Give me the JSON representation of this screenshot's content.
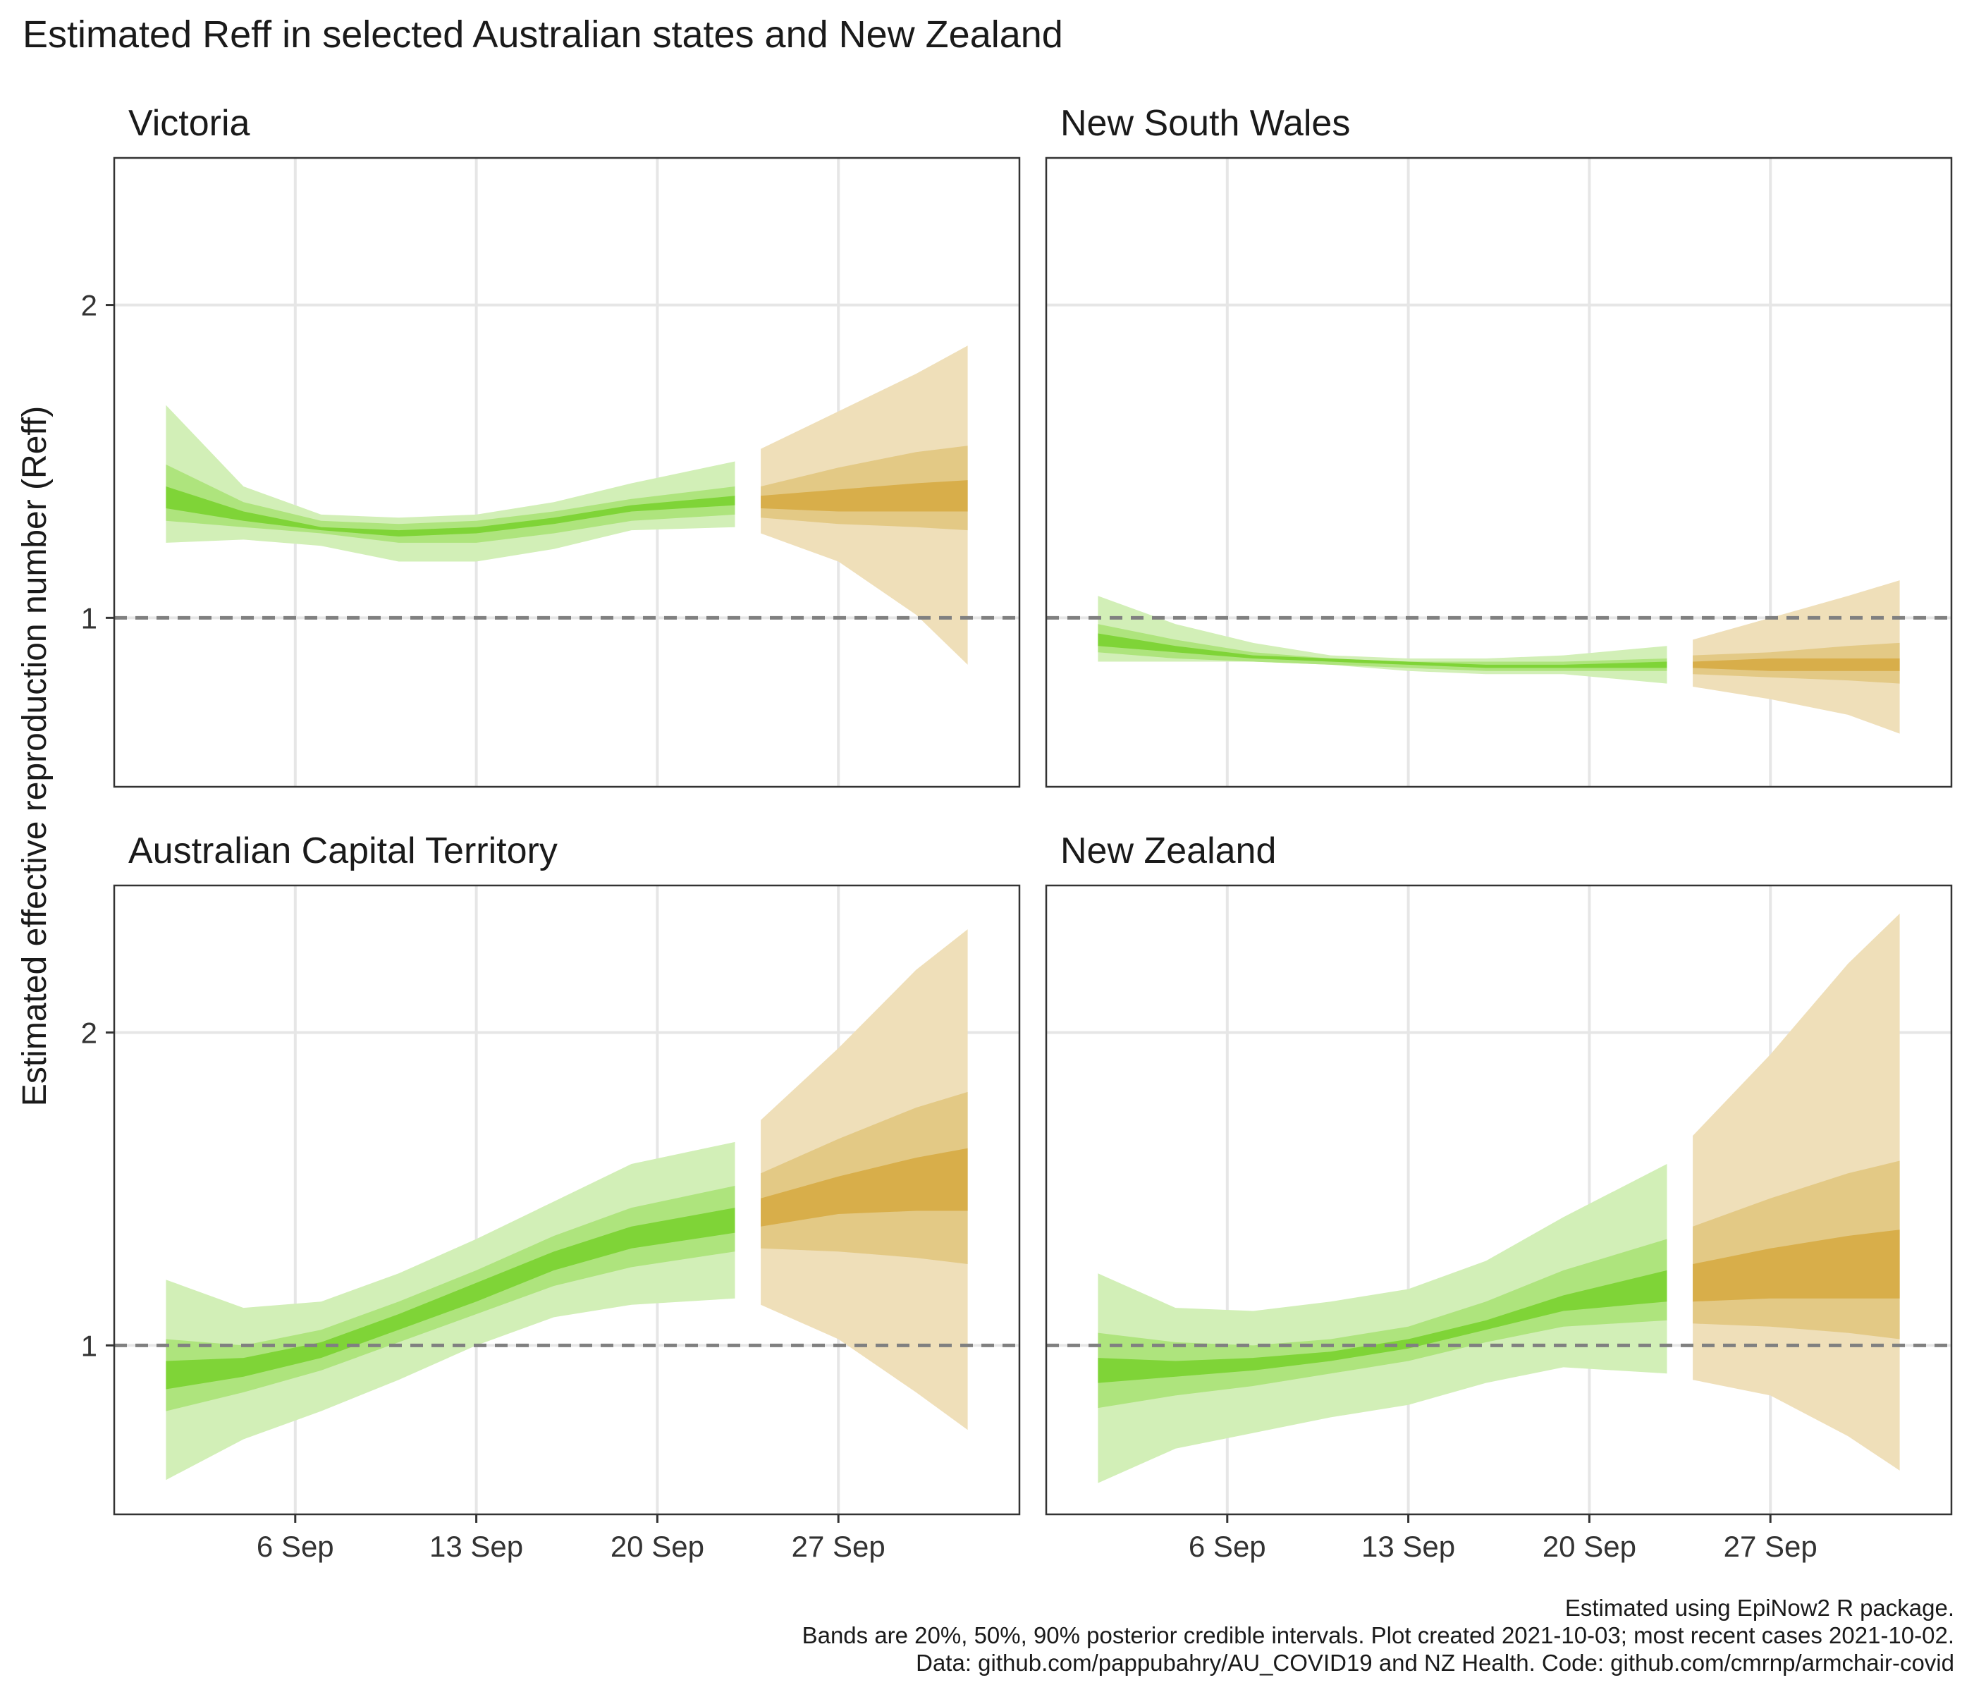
{
  "title": "Estimated Reff in selected Australian states and New Zealand",
  "ylabel": "Estimated effective reproduction number (Reff)",
  "caption": {
    "line1": "Estimated using EpiNow2 R package.",
    "line2": "Bands are 20%, 50%, 90% posterior credible intervals. Plot created 2021-10-03; most recent cases 2021-10-02.",
    "line3": "Data: github.com/pappubahry/AU_COVID19 and NZ Health. Code: github.com/cmrnp/armchair-covid"
  },
  "colors": {
    "estimate_90": "#d2efb7",
    "estimate_50": "#aee47d",
    "estimate_20": "#7fd437",
    "forecast_90": "#efdfb9",
    "forecast_50": "#e3c985",
    "forecast_20": "#d8ae4a",
    "reference_line": "#808080",
    "grid": "#e6e6e6",
    "panel_border": "#333333"
  },
  "chart_data": {
    "type": "area",
    "x_unit": "date (2021)",
    "x_ticks": [
      "6 Sep",
      "13 Sep",
      "20 Sep",
      "27 Sep"
    ],
    "x_tick_dates": [
      "2021-09-06",
      "2021-09-13",
      "2021-09-20",
      "2021-09-27"
    ],
    "xlim": [
      "2021-08-30",
      "2021-10-04"
    ],
    "ylim": [
      0.46,
      2.47
    ],
    "y_ticks": [
      1,
      2
    ],
    "reference_line": 1,
    "grid": true,
    "band_levels": [
      "20%",
      "50%",
      "90%"
    ],
    "phases": [
      "estimate",
      "forecast"
    ],
    "panels": [
      {
        "name": "Victoria",
        "dates": [
          "2021-09-01",
          "2021-09-04",
          "2021-09-07",
          "2021-09-10",
          "2021-09-13",
          "2021-09-16",
          "2021-09-19",
          "2021-09-23",
          "2021-09-24",
          "2021-09-27",
          "2021-09-30",
          "2021-10-02"
        ],
        "phase": [
          "estimate",
          "estimate",
          "estimate",
          "estimate",
          "estimate",
          "estimate",
          "estimate",
          "estimate",
          "forecast",
          "forecast",
          "forecast",
          "forecast"
        ],
        "lower90": [
          1.24,
          1.25,
          1.23,
          1.18,
          1.18,
          1.22,
          1.28,
          1.29,
          1.27,
          1.18,
          1.01,
          0.85
        ],
        "lower50": [
          1.31,
          1.29,
          1.27,
          1.24,
          1.24,
          1.27,
          1.31,
          1.33,
          1.32,
          1.3,
          1.29,
          1.28
        ],
        "lower20": [
          1.35,
          1.31,
          1.28,
          1.26,
          1.27,
          1.3,
          1.34,
          1.36,
          1.35,
          1.34,
          1.34,
          1.34
        ],
        "upper20": [
          1.42,
          1.34,
          1.29,
          1.28,
          1.29,
          1.32,
          1.36,
          1.39,
          1.39,
          1.41,
          1.43,
          1.44
        ],
        "upper50": [
          1.49,
          1.37,
          1.31,
          1.3,
          1.31,
          1.34,
          1.38,
          1.42,
          1.42,
          1.48,
          1.53,
          1.55
        ],
        "upper90": [
          1.68,
          1.42,
          1.33,
          1.32,
          1.33,
          1.37,
          1.43,
          1.5,
          1.54,
          1.66,
          1.78,
          1.87
        ]
      },
      {
        "name": "New South Wales",
        "dates": [
          "2021-09-01",
          "2021-09-04",
          "2021-09-07",
          "2021-09-10",
          "2021-09-13",
          "2021-09-16",
          "2021-09-19",
          "2021-09-23",
          "2021-09-24",
          "2021-09-27",
          "2021-09-30",
          "2021-10-02"
        ],
        "phase": [
          "estimate",
          "estimate",
          "estimate",
          "estimate",
          "estimate",
          "estimate",
          "estimate",
          "estimate",
          "forecast",
          "forecast",
          "forecast",
          "forecast"
        ],
        "lower90": [
          0.86,
          0.86,
          0.86,
          0.85,
          0.83,
          0.82,
          0.82,
          0.79,
          0.78,
          0.74,
          0.69,
          0.63
        ],
        "lower50": [
          0.89,
          0.87,
          0.86,
          0.85,
          0.84,
          0.83,
          0.83,
          0.83,
          0.82,
          0.81,
          0.8,
          0.79
        ],
        "lower20": [
          0.91,
          0.89,
          0.87,
          0.86,
          0.85,
          0.84,
          0.84,
          0.84,
          0.84,
          0.83,
          0.83,
          0.83
        ],
        "upper20": [
          0.95,
          0.91,
          0.88,
          0.87,
          0.86,
          0.85,
          0.85,
          0.86,
          0.86,
          0.87,
          0.87,
          0.87
        ],
        "upper50": [
          0.98,
          0.93,
          0.89,
          0.87,
          0.86,
          0.86,
          0.86,
          0.87,
          0.88,
          0.89,
          0.91,
          0.92
        ],
        "upper90": [
          1.07,
          0.98,
          0.92,
          0.88,
          0.87,
          0.87,
          0.88,
          0.91,
          0.93,
          1.0,
          1.07,
          1.12
        ]
      },
      {
        "name": "Australian Capital Territory",
        "dates": [
          "2021-09-01",
          "2021-09-04",
          "2021-09-07",
          "2021-09-10",
          "2021-09-13",
          "2021-09-16",
          "2021-09-19",
          "2021-09-23",
          "2021-09-24",
          "2021-09-27",
          "2021-09-30",
          "2021-10-02"
        ],
        "phase": [
          "estimate",
          "estimate",
          "estimate",
          "estimate",
          "estimate",
          "estimate",
          "estimate",
          "estimate",
          "forecast",
          "forecast",
          "forecast",
          "forecast"
        ],
        "lower90": [
          0.57,
          0.7,
          0.79,
          0.89,
          1.0,
          1.09,
          1.13,
          1.15,
          1.13,
          1.02,
          0.85,
          0.73
        ],
        "lower50": [
          0.79,
          0.85,
          0.92,
          1.01,
          1.1,
          1.19,
          1.25,
          1.3,
          1.31,
          1.3,
          1.28,
          1.26
        ],
        "lower20": [
          0.86,
          0.9,
          0.96,
          1.05,
          1.14,
          1.24,
          1.31,
          1.36,
          1.38,
          1.42,
          1.43,
          1.43
        ],
        "upper20": [
          0.95,
          0.96,
          1.01,
          1.1,
          1.2,
          1.3,
          1.38,
          1.44,
          1.47,
          1.54,
          1.6,
          1.63
        ],
        "upper50": [
          1.02,
          1.0,
          1.05,
          1.14,
          1.24,
          1.35,
          1.44,
          1.51,
          1.55,
          1.66,
          1.76,
          1.81
        ],
        "upper90": [
          1.21,
          1.12,
          1.14,
          1.23,
          1.34,
          1.46,
          1.58,
          1.65,
          1.72,
          1.95,
          2.2,
          2.33
        ]
      },
      {
        "name": "New Zealand",
        "dates": [
          "2021-09-01",
          "2021-09-04",
          "2021-09-07",
          "2021-09-10",
          "2021-09-13",
          "2021-09-16",
          "2021-09-19",
          "2021-09-23",
          "2021-09-24",
          "2021-09-27",
          "2021-09-30",
          "2021-10-02"
        ],
        "phase": [
          "estimate",
          "estimate",
          "estimate",
          "estimate",
          "estimate",
          "estimate",
          "estimate",
          "estimate",
          "forecast",
          "forecast",
          "forecast",
          "forecast"
        ],
        "lower90": [
          0.56,
          0.67,
          0.72,
          0.77,
          0.81,
          0.88,
          0.93,
          0.91,
          0.89,
          0.84,
          0.71,
          0.6
        ],
        "lower50": [
          0.8,
          0.84,
          0.87,
          0.91,
          0.95,
          1.01,
          1.06,
          1.08,
          1.07,
          1.06,
          1.04,
          1.02
        ],
        "lower20": [
          0.88,
          0.9,
          0.92,
          0.95,
          0.99,
          1.05,
          1.11,
          1.14,
          1.14,
          1.15,
          1.15,
          1.15
        ],
        "upper20": [
          0.96,
          0.95,
          0.96,
          0.98,
          1.02,
          1.08,
          1.16,
          1.24,
          1.26,
          1.31,
          1.35,
          1.37
        ],
        "upper50": [
          1.04,
          1.01,
          1.0,
          1.02,
          1.06,
          1.14,
          1.24,
          1.34,
          1.38,
          1.47,
          1.55,
          1.59
        ],
        "upper90": [
          1.23,
          1.12,
          1.11,
          1.14,
          1.18,
          1.27,
          1.41,
          1.58,
          1.67,
          1.93,
          2.22,
          2.38
        ]
      }
    ]
  }
}
